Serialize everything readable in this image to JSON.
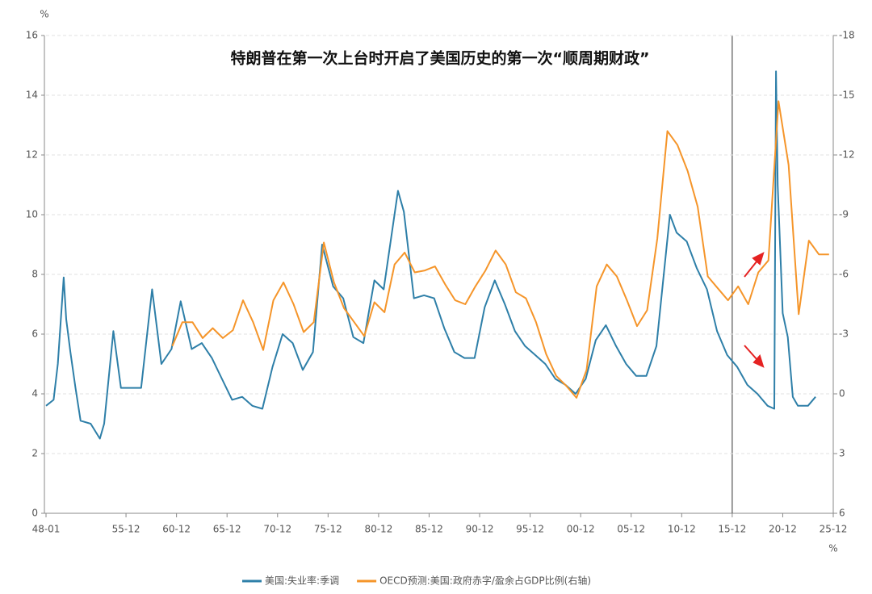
{
  "chart_data": {
    "type": "line",
    "title": "特朗普在第一次上台时开启了美国历史的第一次“顺周期财政”",
    "y_unit": "%",
    "y2_unit": "%",
    "xlim": [
      "1948-01",
      "2025-12"
    ],
    "xticks": [
      {
        "value": "1948-01",
        "label": "48-01"
      },
      {
        "value": "1955-12",
        "label": "55-12"
      },
      {
        "value": "1960-12",
        "label": "60-12"
      },
      {
        "value": "1965-12",
        "label": "65-12"
      },
      {
        "value": "1970-12",
        "label": "70-12"
      },
      {
        "value": "1975-12",
        "label": "75-12"
      },
      {
        "value": "1980-12",
        "label": "80-12"
      },
      {
        "value": "1985-12",
        "label": "85-12"
      },
      {
        "value": "1990-12",
        "label": "90-12"
      },
      {
        "value": "1995-12",
        "label": "95-12"
      },
      {
        "value": "2000-12",
        "label": "00-12"
      },
      {
        "value": "2005-12",
        "label": "05-12"
      },
      {
        "value": "2010-12",
        "label": "10-12"
      },
      {
        "value": "2015-12",
        "label": "15-12"
      },
      {
        "value": "2020-12",
        "label": "20-12"
      },
      {
        "value": "2025-12",
        "label": "25-12"
      }
    ],
    "ylim": [
      0,
      16
    ],
    "yticks": [
      0,
      2,
      4,
      6,
      8,
      10,
      12,
      14,
      16
    ],
    "y2lim": [
      6,
      -18
    ],
    "y2ticks": [
      6,
      3,
      0,
      -3,
      -6,
      -9,
      -12,
      -15,
      -18
    ],
    "grid": true,
    "series": [
      {
        "name": "美国:失业率:季调",
        "color": "#2e7fa8",
        "x": [
          "1948-01",
          "1948-10",
          "1949-03",
          "1949-10",
          "1950-01",
          "1950-06",
          "1950-12",
          "1951-06",
          "1952-06",
          "1953-05",
          "1953-10",
          "1954-09",
          "1955-06",
          "1956-06",
          "1957-06",
          "1958-07",
          "1959-06",
          "1960-06",
          "1961-05",
          "1962-06",
          "1963-06",
          "1964-06",
          "1965-06",
          "1966-06",
          "1967-06",
          "1968-06",
          "1969-06",
          "1970-06",
          "1971-06",
          "1972-06",
          "1973-06",
          "1974-06",
          "1975-05",
          "1976-06",
          "1977-06",
          "1978-06",
          "1979-06",
          "1980-07",
          "1981-06",
          "1982-11",
          "1983-06",
          "1984-06",
          "1985-06",
          "1986-06",
          "1987-06",
          "1988-06",
          "1989-06",
          "1990-06",
          "1991-06",
          "1992-06",
          "1993-06",
          "1994-06",
          "1995-06",
          "1996-06",
          "1997-06",
          "1998-06",
          "1999-06",
          "2000-06",
          "2001-06",
          "2002-06",
          "2003-06",
          "2004-06",
          "2005-06",
          "2006-06",
          "2007-06",
          "2008-06",
          "2009-10",
          "2010-06",
          "2011-06",
          "2012-06",
          "2013-06",
          "2014-06",
          "2015-06",
          "2016-06",
          "2017-06",
          "2018-06",
          "2019-06",
          "2020-02",
          "2020-04",
          "2020-06",
          "2020-12",
          "2021-06",
          "2021-12",
          "2022-06",
          "2023-06",
          "2024-03"
        ],
        "values": [
          3.6,
          3.8,
          5.0,
          7.9,
          6.5,
          5.4,
          4.2,
          3.1,
          3.0,
          2.5,
          3.0,
          6.1,
          4.2,
          4.2,
          4.2,
          7.5,
          5.0,
          5.5,
          7.1,
          5.5,
          5.7,
          5.2,
          4.5,
          3.8,
          3.9,
          3.6,
          3.5,
          4.9,
          6.0,
          5.7,
          4.8,
          5.4,
          9.0,
          7.6,
          7.2,
          5.9,
          5.7,
          7.8,
          7.5,
          10.8,
          10.1,
          7.2,
          7.3,
          7.2,
          6.2,
          5.4,
          5.2,
          5.2,
          6.9,
          7.8,
          7.0,
          6.1,
          5.6,
          5.3,
          5.0,
          4.5,
          4.3,
          4.0,
          4.5,
          5.8,
          6.3,
          5.6,
          5.0,
          4.6,
          4.6,
          5.6,
          10.0,
          9.4,
          9.1,
          8.2,
          7.5,
          6.1,
          5.3,
          4.9,
          4.3,
          4.0,
          3.6,
          3.5,
          14.8,
          11.0,
          6.7,
          5.9,
          3.9,
          3.6,
          3.6,
          3.9
        ]
      },
      {
        "name": "OECD预测:美国:政府赤字/盈余占GDP比例(右轴)",
        "color": "#f5952a",
        "axis": "y2",
        "x": [
          "1960",
          "1961",
          "1962",
          "1963",
          "1964",
          "1965",
          "1966",
          "1967",
          "1968",
          "1969",
          "1970",
          "1971",
          "1972",
          "1973",
          "1974",
          "1975",
          "1976",
          "1977",
          "1978",
          "1979",
          "1980",
          "1981",
          "1982",
          "1983",
          "1984",
          "1985",
          "1986",
          "1987",
          "1988",
          "1989",
          "1990",
          "1991",
          "1992",
          "1993",
          "1994",
          "1995",
          "1996",
          "1997",
          "1998",
          "1999",
          "2000",
          "2001",
          "2002",
          "2003",
          "2004",
          "2005",
          "2006",
          "2007",
          "2008",
          "2009",
          "2010",
          "2011",
          "2012",
          "2013",
          "2014",
          "2015",
          "2016",
          "2017",
          "2018",
          "2019",
          "2020",
          "2021",
          "2022",
          "2023",
          "2024",
          "2025"
        ],
        "values": [
          -2.4,
          -3.6,
          -3.6,
          -2.8,
          -3.3,
          -2.8,
          -3.2,
          -4.7,
          -3.6,
          -2.2,
          -4.7,
          -5.6,
          -4.5,
          -3.1,
          -3.6,
          -7.6,
          -5.6,
          -4.3,
          -3.6,
          -2.9,
          -4.6,
          -4.1,
          -6.5,
          -7.1,
          -6.1,
          -6.2,
          -6.4,
          -5.5,
          -4.7,
          -4.5,
          -5.4,
          -6.2,
          -7.2,
          -6.5,
          -5.1,
          -4.8,
          -3.6,
          -2.0,
          -0.9,
          -0.4,
          0.2,
          -1.2,
          -5.4,
          -6.5,
          -5.9,
          -4.7,
          -3.4,
          -4.2,
          -7.8,
          -13.2,
          -12.5,
          -11.2,
          -9.4,
          -5.9,
          -5.3,
          -4.7,
          -5.4,
          -4.5,
          -6.1,
          -6.7,
          -14.7,
          -11.5,
          -4.0,
          -7.7,
          -7.0,
          -7.0
        ]
      }
    ]
  }
}
